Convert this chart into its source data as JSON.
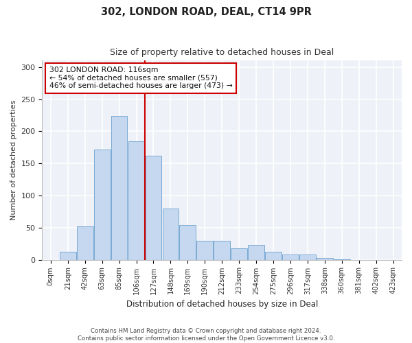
{
  "title1": "302, LONDON ROAD, DEAL, CT14 9PR",
  "title2": "Size of property relative to detached houses in Deal",
  "xlabel": "Distribution of detached houses by size in Deal",
  "ylabel": "Number of detached properties",
  "bar_labels": [
    "0sqm",
    "21sqm",
    "42sqm",
    "63sqm",
    "85sqm",
    "106sqm",
    "127sqm",
    "148sqm",
    "169sqm",
    "190sqm",
    "212sqm",
    "233sqm",
    "254sqm",
    "275sqm",
    "296sqm",
    "317sqm",
    "338sqm",
    "360sqm",
    "381sqm",
    "402sqm",
    "423sqm"
  ],
  "bar_heights": [
    0,
    12,
    52,
    172,
    224,
    184,
    162,
    80,
    54,
    29,
    29,
    18,
    23,
    12,
    8,
    8,
    3,
    1,
    0,
    0,
    0
  ],
  "bar_color": "#c5d8f0",
  "bar_edge_color": "#7aaad4",
  "ylim": [
    0,
    310
  ],
  "yticks": [
    0,
    50,
    100,
    150,
    200,
    250,
    300
  ],
  "vline_x_index": 5.5,
  "vline_color": "#cc0000",
  "annotation_text": "302 LONDON ROAD: 116sqm\n← 54% of detached houses are smaller (557)\n46% of semi-detached houses are larger (473) →",
  "annotation_box_color": "#ffffff",
  "annotation_box_edge": "#cc0000",
  "footer1": "Contains HM Land Registry data © Crown copyright and database right 2024.",
  "footer2": "Contains public sector information licensed under the Open Government Licence v3.0.",
  "bg_color": "#eef2f8",
  "grid_color": "#ffffff",
  "fig_bg": "#ffffff"
}
